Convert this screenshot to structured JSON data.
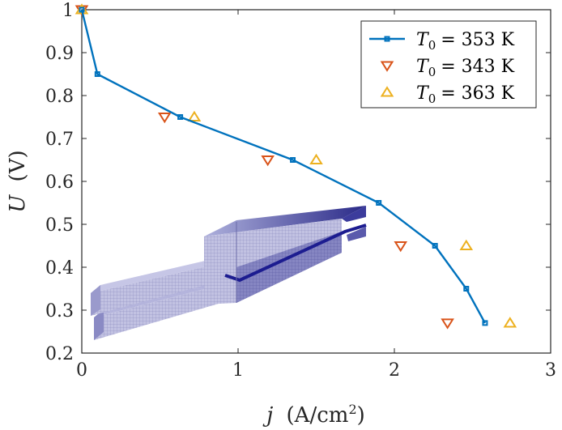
{
  "chart_data": {
    "type": "line",
    "xlabel_var": "j",
    "xlabel_unit": "(A/cm",
    "xlabel_sup": "2",
    "xlabel_close": ")",
    "ylabel_var": "U",
    "ylabel_unit": "(V)",
    "xlim": [
      0,
      3
    ],
    "ylim": [
      0.2,
      1
    ],
    "xticks": [
      0,
      1,
      2,
      3
    ],
    "xtick_labels": [
      "0",
      "1",
      "2",
      "3"
    ],
    "yticks": [
      0.2,
      0.3,
      0.4,
      0.5,
      0.6,
      0.7,
      0.8,
      0.9,
      1
    ],
    "ytick_labels": [
      "0.2",
      "0.3",
      "0.4",
      "0.5",
      "0.6",
      "0.7",
      "0.8",
      "0.9",
      "1"
    ],
    "grid": false,
    "legend_position": "top-right",
    "series": [
      {
        "name": "T0 = 353 K",
        "legend_var": "T",
        "legend_sub": "0",
        "legend_rest": "= 353 K",
        "color": "#0072BD",
        "marker": "square",
        "line": true,
        "x": [
          0,
          0.1,
          0.63,
          1.35,
          1.9,
          2.26,
          2.46,
          2.58
        ],
        "y": [
          1.0,
          0.85,
          0.75,
          0.65,
          0.55,
          0.45,
          0.35,
          0.27
        ]
      },
      {
        "name": "T0 = 343 K",
        "legend_var": "T",
        "legend_sub": "0",
        "legend_rest": "= 343 K",
        "color": "#D95319",
        "marker": "triangle-down",
        "line": false,
        "x": [
          0,
          0.53,
          1.19,
          2.04,
          2.34
        ],
        "y": [
          1.0,
          0.75,
          0.65,
          0.45,
          0.27
        ]
      },
      {
        "name": "T0 = 363 K",
        "legend_var": "T",
        "legend_sub": "0",
        "legend_rest": "= 363 K",
        "color": "#EDB120",
        "marker": "triangle-up",
        "line": false,
        "x": [
          0,
          0.72,
          1.5,
          2.46,
          2.74
        ],
        "y": [
          1.0,
          0.75,
          0.65,
          0.45,
          0.27
        ]
      }
    ]
  },
  "inset": {
    "description_icon": "mesh-3d-icon",
    "colors": {
      "light": "#bcbce0",
      "mid": "#8a8ac4",
      "dark": "#2d2d8c",
      "edge": "#6a6aa8"
    }
  }
}
